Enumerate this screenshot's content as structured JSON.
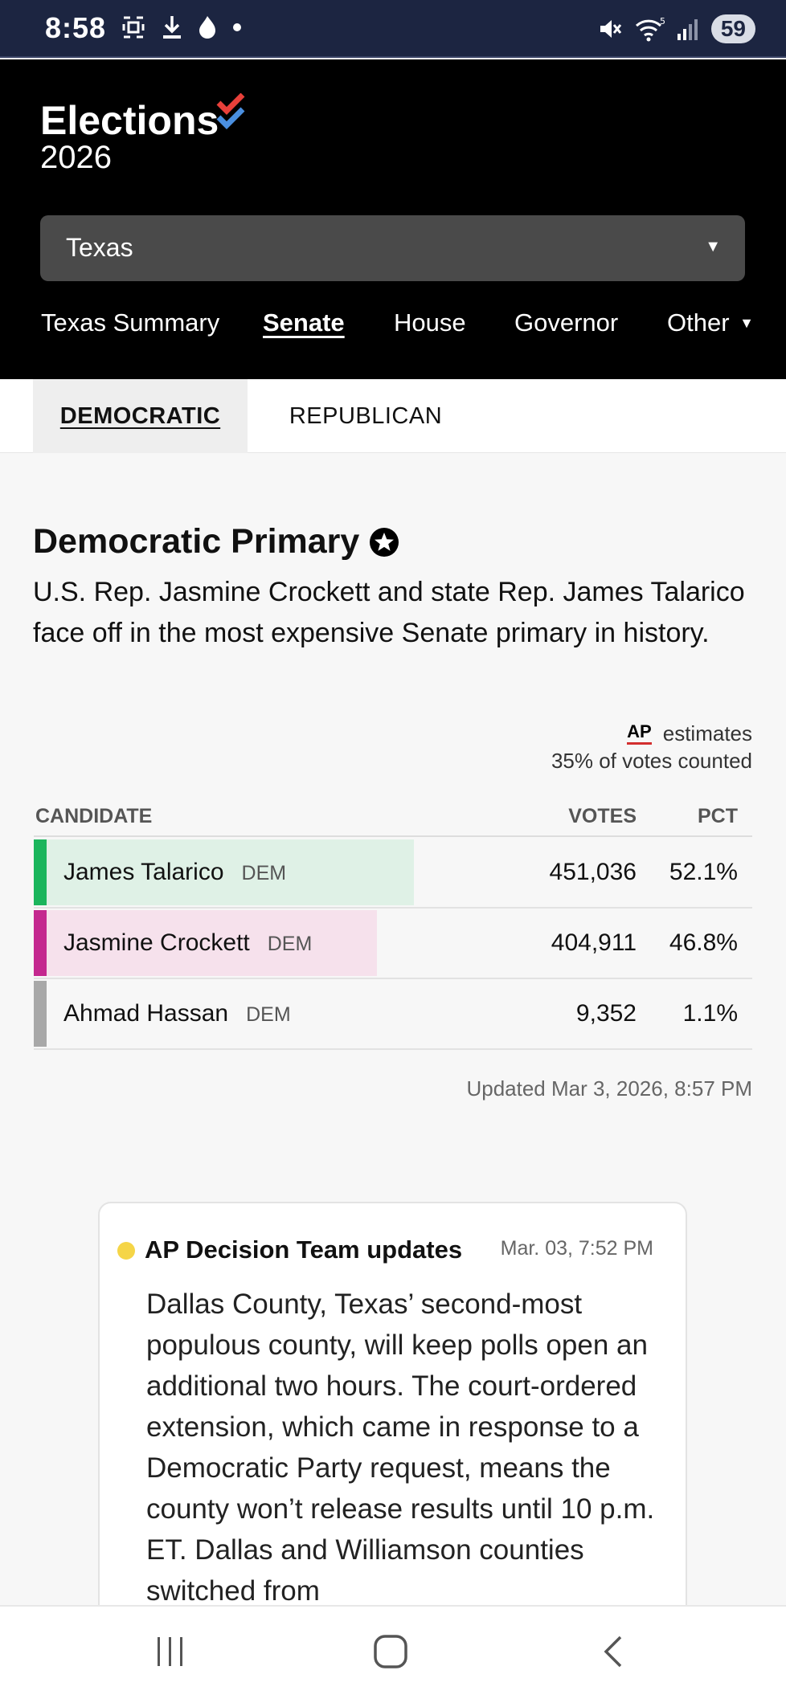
{
  "status_bar": {
    "time": "8:58",
    "battery": "59",
    "icons_left": [
      "screenshot-icon",
      "download-icon",
      "flame-icon",
      "dot-icon"
    ],
    "icons_right": [
      "mute-icon",
      "wifi-icon",
      "signal-icon",
      "battery-icon"
    ]
  },
  "header": {
    "logo_title": "Elections",
    "logo_year": "2026",
    "state_select": {
      "value": "Texas"
    },
    "nav": [
      {
        "label": "Texas Summary",
        "active": false
      },
      {
        "label": "Senate",
        "active": true
      },
      {
        "label": "House",
        "active": false
      },
      {
        "label": "Governor",
        "active": false
      },
      {
        "label": "Other",
        "active": false
      }
    ]
  },
  "party_tabs": [
    {
      "label": "DEMOCRATIC",
      "active": true
    },
    {
      "label": "REPUBLICAN",
      "active": false
    }
  ],
  "race": {
    "title": "Democratic Primary",
    "description": "U.S. Rep. Jasmine Crockett and state Rep. James Talarico face off in the most expensive Senate primary in history.",
    "ap_mark": "AP",
    "ap_label": "estimates",
    "count_label": "35% of votes counted",
    "columns": {
      "candidate": "CANDIDATE",
      "votes": "VOTES",
      "pct": "PCT"
    },
    "candidates": [
      {
        "name": "James Talarico",
        "party": "DEM",
        "votes": "451,036",
        "pct": "52.1%",
        "share": 0.521,
        "color": "#1bb55c",
        "bar_color": "#dff1e6"
      },
      {
        "name": "Jasmine Crockett",
        "party": "DEM",
        "votes": "404,911",
        "pct": "46.8%",
        "share": 0.468,
        "color": "#c4288f",
        "bar_color": "#f6e1ec"
      },
      {
        "name": "Ahmad Hassan",
        "party": "DEM",
        "votes": "9,352",
        "pct": "1.1%",
        "share": 0.011,
        "color": "#a8a8a8",
        "bar_color": "#f7f7f7"
      }
    ],
    "updated": "Updated Mar 3, 2026, 8:57 PM"
  },
  "ap_card": {
    "title": "AP Decision Team updates",
    "time": "Mar. 03, 7:52 PM",
    "body": "Dallas County, Texas’ second-most populous county, will keep polls open an additional two hours. The court-ordered extension, which came in response to a Democratic Party request, means the county won’t release results until 10 p.m. ET. Dallas and Williamson counties switched from"
  },
  "colors": {
    "header_bg": "#000000",
    "status_bg": "#1c2541",
    "check_red": "#e8403a",
    "check_blue": "#4a8fe0"
  }
}
